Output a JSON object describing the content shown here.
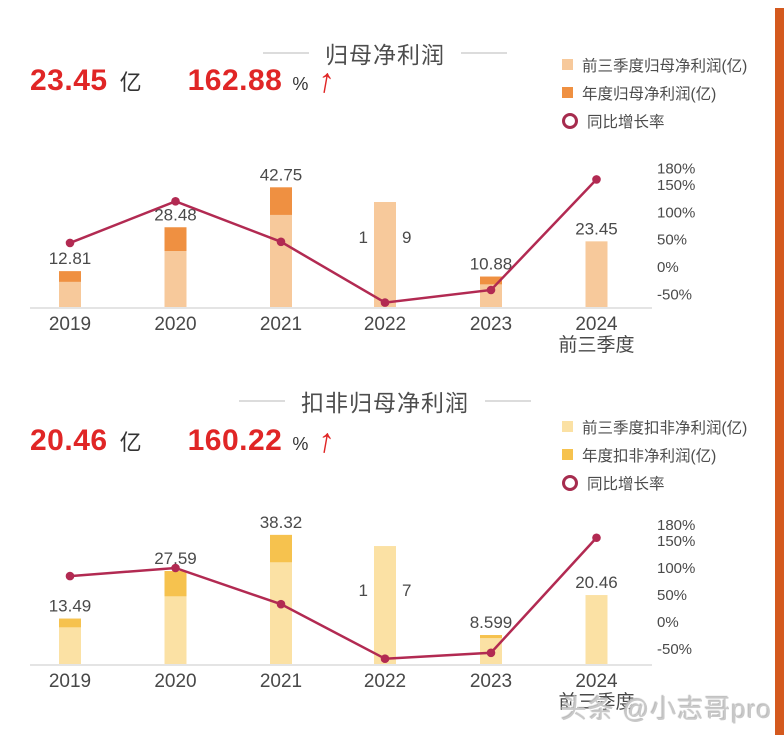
{
  "page": {
    "watermark": "头条 @小志哥pro",
    "accent_stripe_color": "#D4591E",
    "background": "#FFFFFF"
  },
  "charts": [
    {
      "title": "归母净利润",
      "stat": {
        "value": "23.45",
        "unit": "亿",
        "growth": "162.88",
        "growth_unit": "%",
        "up_arrow_char": "↑"
      },
      "legend": [
        {
          "label": "前三季度归母净利润(亿)",
          "marker": "square",
          "color": "#F7C99B"
        },
        {
          "label": "年度归母净利润(亿)",
          "marker": "square",
          "color": "#EF9041"
        },
        {
          "label": "同比增长率",
          "marker": "ring",
          "color": "#A62C4E"
        }
      ],
      "chart_data": {
        "type": "combo-bar-line",
        "categories": [
          [
            "2019"
          ],
          [
            "2020"
          ],
          [
            "2021"
          ],
          [
            "2022"
          ],
          [
            "2023"
          ],
          [
            "2024",
            "前三季度"
          ]
        ],
        "series": [
          {
            "name": "前三季度归母净利润(亿)",
            "type": "bar",
            "role": "q3",
            "color": "#F7C99B",
            "values": [
              9.0,
              20.0,
              32.9,
              37.5,
              8.1,
              23.45
            ]
          },
          {
            "name": "年度归母净利润(亿)",
            "type": "bar",
            "role": "annual",
            "color": "#EF9041",
            "values": [
              12.81,
              28.48,
              42.75,
              null,
              10.88,
              null
            ]
          },
          {
            "name": "同比增长率",
            "type": "line",
            "role": "yoy",
            "color": "#B22A52",
            "values_pct": [
              44,
              120,
              46,
              -65,
              -42,
              160
            ]
          }
        ],
        "bar_labels": [
          "12.81",
          "28.48",
          "42.75",
          {
            "left": "1",
            "right": "9",
            "height_yi": 25
          },
          "10.88",
          "23.45"
        ],
        "right_axis": {
          "tick_labels": [
            "180%",
            "150%",
            "100%",
            "50%",
            "0%",
            "-50%"
          ],
          "tick_values": [
            180,
            150,
            100,
            50,
            0,
            -50
          ]
        },
        "grid": false,
        "legend_position": "top-right"
      }
    },
    {
      "title": "扣非归母净利润",
      "stat": {
        "value": "20.46",
        "unit": "亿",
        "growth": "160.22",
        "growth_unit": "%",
        "up_arrow_char": "↑"
      },
      "legend": [
        {
          "label": "前三季度扣非净利润(亿)",
          "marker": "square",
          "color": "#FBE1A4"
        },
        {
          "label": "年度扣非净利润(亿)",
          "marker": "square",
          "color": "#F6C24E"
        },
        {
          "label": "同比增长率",
          "marker": "ring",
          "color": "#A62C4E"
        }
      ],
      "chart_data": {
        "type": "combo-bar-line",
        "categories": [
          [
            "2019"
          ],
          [
            "2020"
          ],
          [
            "2021"
          ],
          [
            "2022"
          ],
          [
            "2023"
          ],
          [
            "2024",
            "前三季度"
          ]
        ],
        "series": [
          {
            "name": "前三季度扣非净利润(亿)",
            "type": "bar",
            "role": "q3",
            "color": "#FBE1A4",
            "values": [
              10.9,
              20.1,
              30.2,
              35.0,
              7.7,
              20.46
            ]
          },
          {
            "name": "年度扣非净利润(亿)",
            "type": "bar",
            "role": "annual",
            "color": "#F6C24E",
            "values": [
              13.49,
              27.59,
              38.32,
              null,
              8.599,
              null
            ]
          },
          {
            "name": "同比增长率",
            "type": "line",
            "role": "yoy",
            "color": "#B22A52",
            "values_pct": [
              85,
              100,
              33,
              -68,
              -57,
              156
            ]
          }
        ],
        "bar_labels": [
          "13.49",
          "27.59",
          "38.32",
          {
            "left": "1",
            "right": "7",
            "height_yi": 22
          },
          "8.599",
          "20.46"
        ],
        "right_axis": {
          "tick_labels": [
            "180%",
            "150%",
            "100%",
            "50%",
            "0%",
            "-50%"
          ],
          "tick_values": [
            180,
            150,
            100,
            50,
            0,
            -50
          ]
        },
        "grid": false,
        "legend_position": "top-right"
      }
    }
  ]
}
